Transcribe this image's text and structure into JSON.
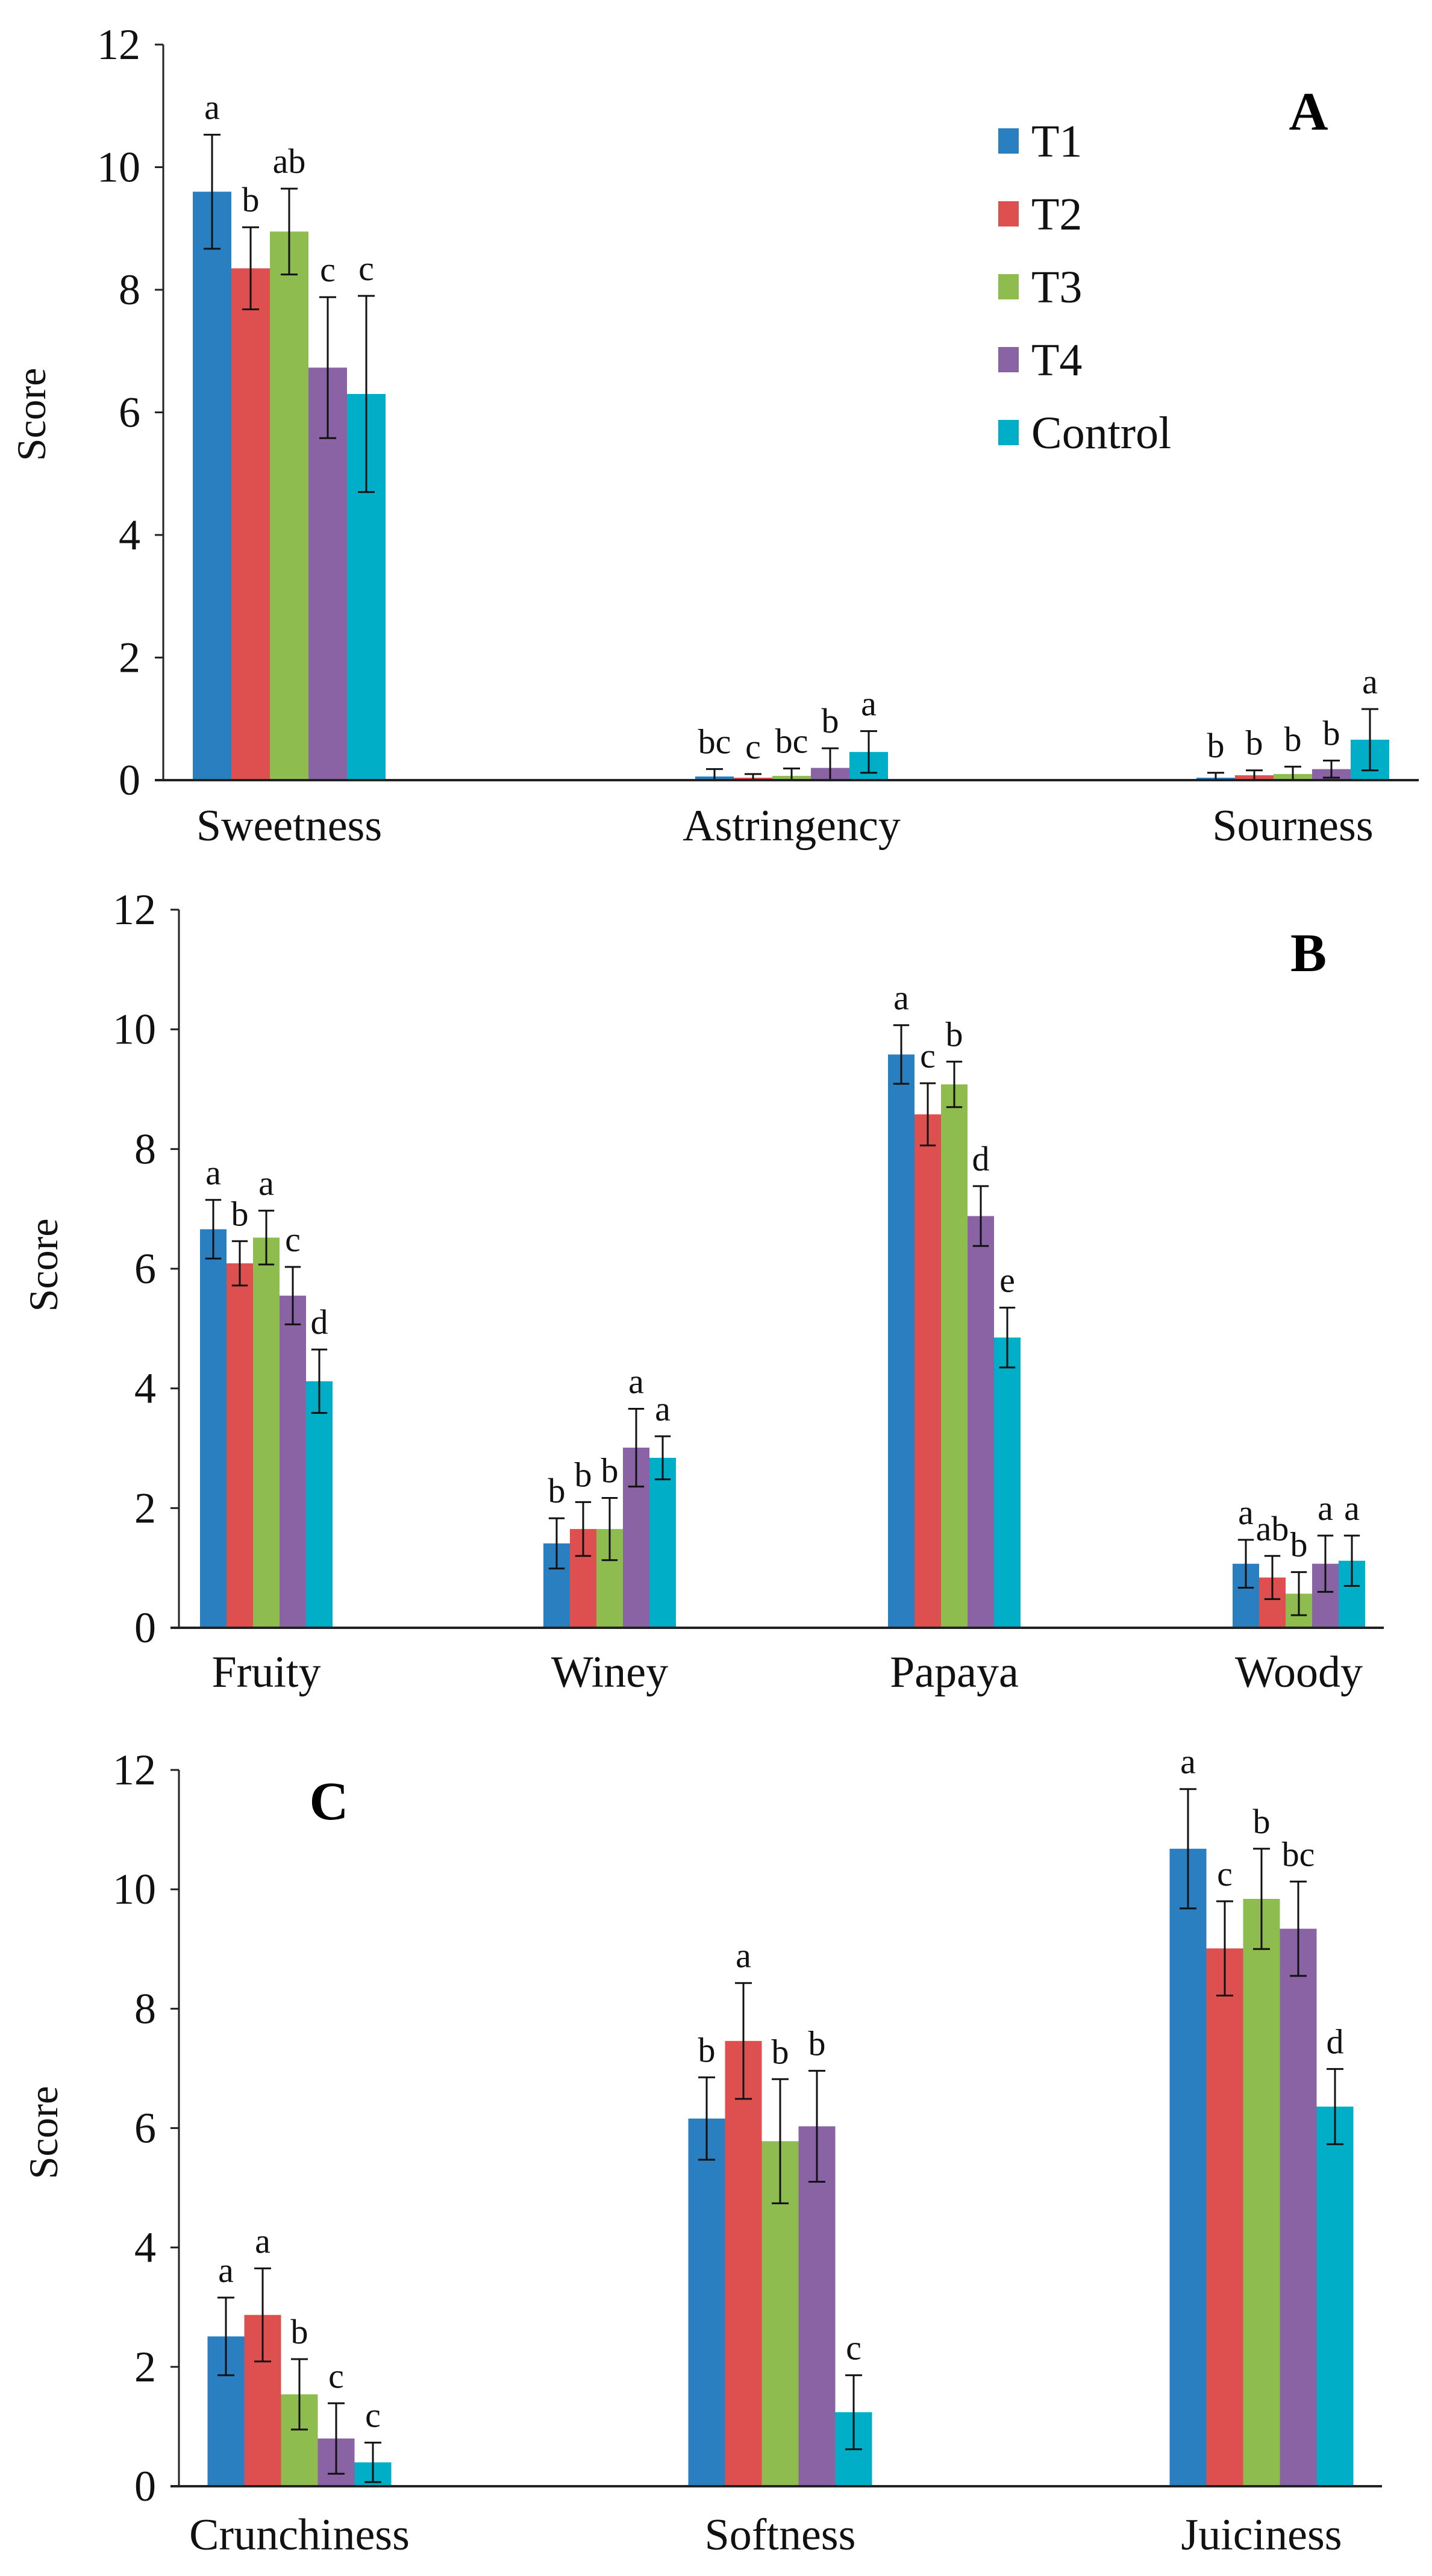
{
  "chart_data": [
    {
      "type": "bar",
      "panel": "A",
      "ylabel": "Score",
      "ylim": [
        0,
        12
      ],
      "yticks": [
        0,
        2,
        4,
        6,
        8,
        10,
        12
      ],
      "categories": [
        "Sweetness",
        "Astringency",
        "Sourness"
      ],
      "legend": {
        "placement": "top-right",
        "entries": [
          "T1",
          "T2",
          "T3",
          "T4",
          "Control"
        ]
      },
      "series": [
        {
          "name": "T1",
          "color": "#2a7fc0",
          "values": [
            9.6,
            0.06,
            0.04
          ],
          "errors": [
            0.93,
            0.12,
            0.08
          ],
          "letters": [
            "a",
            "bc",
            "b"
          ]
        },
        {
          "name": "T2",
          "color": "#de5050",
          "values": [
            8.35,
            0.04,
            0.08
          ],
          "errors": [
            0.67,
            0.06,
            0.08
          ],
          "letters": [
            "b",
            "c",
            "b"
          ]
        },
        {
          "name": "T3",
          "color": "#8fbc4f",
          "values": [
            8.95,
            0.07,
            0.1
          ],
          "errors": [
            0.7,
            0.12,
            0.12
          ],
          "letters": [
            "ab",
            "bc",
            "b"
          ]
        },
        {
          "name": "T4",
          "color": "#8a63a5",
          "values": [
            6.73,
            0.2,
            0.18
          ],
          "errors": [
            1.15,
            0.32,
            0.14
          ],
          "letters": [
            "c",
            "b",
            "b"
          ]
        },
        {
          "name": "Control",
          "color": "#00aec7",
          "values": [
            6.3,
            0.46,
            0.66
          ],
          "errors": [
            1.6,
            0.34,
            0.5
          ],
          "letters": [
            "c",
            "a",
            "a"
          ]
        }
      ]
    },
    {
      "type": "bar",
      "panel": "B",
      "ylabel": "Score",
      "ylim": [
        0,
        12
      ],
      "yticks": [
        0,
        2,
        4,
        6,
        8,
        10,
        12
      ],
      "categories": [
        "Fruity",
        "Winey",
        "Papaya",
        "Woody"
      ],
      "series": [
        {
          "name": "T1",
          "color": "#2a7fc0",
          "values": [
            6.66,
            1.41,
            9.58,
            1.07
          ],
          "errors": [
            0.49,
            0.42,
            0.49,
            0.4
          ],
          "letters": [
            "a",
            "b",
            "a",
            "a"
          ]
        },
        {
          "name": "T2",
          "color": "#de5050",
          "values": [
            6.09,
            1.65,
            8.58,
            0.84
          ],
          "errors": [
            0.37,
            0.45,
            0.52,
            0.36
          ],
          "letters": [
            "b",
            "b",
            "c",
            "ab"
          ]
        },
        {
          "name": "T3",
          "color": "#8fbc4f",
          "values": [
            6.52,
            1.65,
            9.08,
            0.57
          ],
          "errors": [
            0.45,
            0.52,
            0.38,
            0.36
          ],
          "letters": [
            "a",
            "b",
            "b",
            "b"
          ]
        },
        {
          "name": "T4",
          "color": "#8a63a5",
          "values": [
            5.55,
            3.01,
            6.88,
            1.07
          ],
          "errors": [
            0.48,
            0.65,
            0.5,
            0.47
          ],
          "letters": [
            "c",
            "a",
            "d",
            "a"
          ]
        },
        {
          "name": "Control",
          "color": "#00aec7",
          "values": [
            4.12,
            2.84,
            4.85,
            1.12
          ],
          "errors": [
            0.53,
            0.36,
            0.5,
            0.42
          ],
          "letters": [
            "d",
            "a",
            "e",
            "a"
          ]
        }
      ]
    },
    {
      "type": "bar",
      "panel": "C",
      "ylabel": "Score",
      "ylim": [
        0,
        12
      ],
      "yticks": [
        0,
        2,
        4,
        6,
        8,
        10,
        12
      ],
      "categories": [
        "Crunchiness",
        "Softness",
        "Juiciness"
      ],
      "series": [
        {
          "name": "T1",
          "color": "#2a7fc0",
          "values": [
            2.51,
            6.16,
            10.68
          ],
          "errors": [
            0.65,
            0.69,
            1.0
          ],
          "letters": [
            "a",
            "b",
            "a"
          ]
        },
        {
          "name": "T2",
          "color": "#de5050",
          "values": [
            2.87,
            7.46,
            9.01
          ],
          "errors": [
            0.78,
            0.97,
            0.79
          ],
          "letters": [
            "a",
            "a",
            "c"
          ]
        },
        {
          "name": "T3",
          "color": "#8fbc4f",
          "values": [
            1.54,
            5.78,
            9.84
          ],
          "errors": [
            0.59,
            1.04,
            0.84
          ],
          "letters": [
            "b",
            "b",
            "b"
          ]
        },
        {
          "name": "T4",
          "color": "#8a63a5",
          "values": [
            0.8,
            6.03,
            9.34
          ],
          "errors": [
            0.59,
            0.93,
            0.79
          ],
          "letters": [
            "c",
            "b",
            "bc"
          ]
        },
        {
          "name": "Control",
          "color": "#00aec7",
          "values": [
            0.4,
            1.24,
            6.36
          ],
          "errors": [
            0.33,
            0.62,
            0.63
          ],
          "letters": [
            "c",
            "c",
            "d"
          ]
        }
      ]
    }
  ]
}
